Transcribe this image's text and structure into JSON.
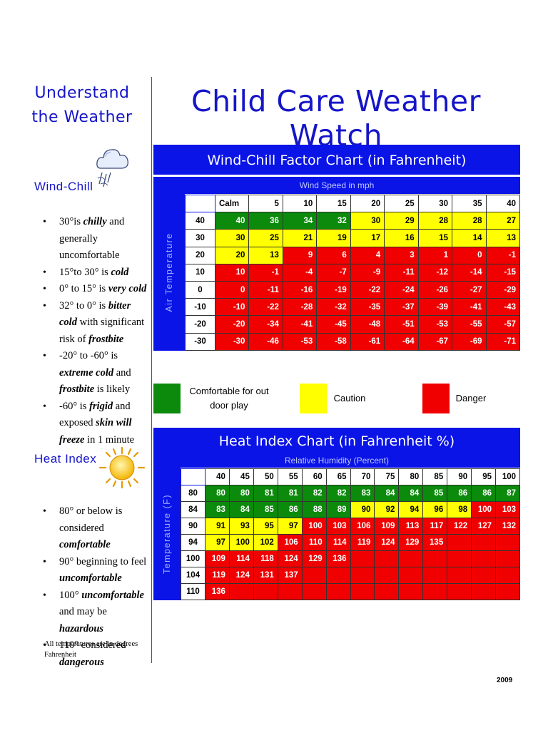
{
  "sidebar": {
    "heading": "Understand the Weather",
    "wind_chill": {
      "heading": "Wind-Chill",
      "icon": "cloud-wind-icon",
      "bullets": [
        {
          "parts": [
            [
              "30°is ",
              false
            ],
            [
              "chilly",
              true
            ],
            [
              " and generally uncomfortable",
              false
            ]
          ]
        },
        {
          "parts": [
            [
              "15°to 30° is ",
              false
            ],
            [
              "cold",
              true
            ]
          ]
        },
        {
          "parts": [
            [
              "0° to 15° is ",
              false
            ],
            [
              "very cold",
              true
            ]
          ]
        },
        {
          "parts": [
            [
              "32° to 0° is ",
              false
            ],
            [
              "bitter cold",
              true
            ],
            [
              " with significant risk of ",
              false
            ],
            [
              "frostbite",
              true
            ]
          ]
        },
        {
          "parts": [
            [
              "-20° to -60° is ",
              false
            ],
            [
              "extreme cold",
              true
            ],
            [
              " and ",
              false
            ],
            [
              "frostbite",
              true
            ],
            [
              " is likely",
              false
            ]
          ]
        },
        {
          "parts": [
            [
              "-60° is ",
              false
            ],
            [
              "frigid",
              true
            ],
            [
              " and exposed ",
              false
            ],
            [
              "skin will freeze",
              true
            ],
            [
              " in 1 minute",
              false
            ]
          ]
        }
      ]
    },
    "heat_index": {
      "heading": "Heat Index",
      "icon": "sun-icon",
      "bullets": [
        {
          "parts": [
            [
              "80° or below is considered ",
              false
            ],
            [
              "comfortable",
              true
            ]
          ]
        },
        {
          "parts": [
            [
              "90° beginning to feel ",
              false
            ],
            [
              "uncomfortable",
              true
            ]
          ]
        },
        {
          "parts": [
            [
              "100° ",
              false
            ],
            [
              "uncomfortable",
              true
            ],
            [
              " and may be ",
              false
            ],
            [
              "hazardous",
              true
            ]
          ]
        },
        {
          "parts": [
            [
              "110° considered ",
              false
            ],
            [
              "dangerous",
              true
            ]
          ]
        }
      ]
    },
    "note": "All temperatures are in degrees Fahrenheit"
  },
  "title": "Child Care Weather Watch",
  "colors": {
    "green": "#0b8a0b",
    "yellow": "#ffff00",
    "red": "#f00000",
    "blue": "#0a14e6",
    "title": "#1515c8"
  },
  "wind_chill_chart": {
    "title": "Wind-Chill Factor Chart (in Fahrenheit)",
    "subtitle": "Wind Speed in mph",
    "row_axis_label": "Air Temperature",
    "columns": [
      "Calm",
      "5",
      "10",
      "15",
      "20",
      "25",
      "30",
      "35",
      "40"
    ],
    "rows": [
      {
        "temp": "40",
        "cells": [
          [
            "40",
            "g"
          ],
          [
            "36",
            "g"
          ],
          [
            "34",
            "g"
          ],
          [
            "32",
            "g"
          ],
          [
            "30",
            "y"
          ],
          [
            "29",
            "y"
          ],
          [
            "28",
            "y"
          ],
          [
            "28",
            "y"
          ],
          [
            "27",
            "y"
          ]
        ]
      },
      {
        "temp": "30",
        "cells": [
          [
            "30",
            "y"
          ],
          [
            "25",
            "y"
          ],
          [
            "21",
            "y"
          ],
          [
            "19",
            "y"
          ],
          [
            "17",
            "y"
          ],
          [
            "16",
            "y"
          ],
          [
            "15",
            "y"
          ],
          [
            "14",
            "y"
          ],
          [
            "13",
            "y"
          ]
        ]
      },
      {
        "temp": "20",
        "cells": [
          [
            "20",
            "y"
          ],
          [
            "13",
            "y"
          ],
          [
            "9",
            "r"
          ],
          [
            "6",
            "r"
          ],
          [
            "4",
            "r"
          ],
          [
            "3",
            "r"
          ],
          [
            "1",
            "r"
          ],
          [
            "0",
            "r"
          ],
          [
            "-1",
            "r"
          ]
        ]
      },
      {
        "temp": "10",
        "cells": [
          [
            "10",
            "r"
          ],
          [
            "-1",
            "r"
          ],
          [
            "-4",
            "r"
          ],
          [
            "-7",
            "r"
          ],
          [
            "-9",
            "r"
          ],
          [
            "-11",
            "r"
          ],
          [
            "-12",
            "r"
          ],
          [
            "-14",
            "r"
          ],
          [
            "-15",
            "r"
          ]
        ]
      },
      {
        "temp": "0",
        "cells": [
          [
            "0",
            "r"
          ],
          [
            "-11",
            "r"
          ],
          [
            "-16",
            "r"
          ],
          [
            "-19",
            "r"
          ],
          [
            "-22",
            "r"
          ],
          [
            "-24",
            "r"
          ],
          [
            "-26",
            "r"
          ],
          [
            "-27",
            "r"
          ],
          [
            "-29",
            "r"
          ]
        ]
      },
      {
        "temp": "-10",
        "cells": [
          [
            "-10",
            "r"
          ],
          [
            "-22",
            "r"
          ],
          [
            "-28",
            "r"
          ],
          [
            "-32",
            "r"
          ],
          [
            "-35",
            "r"
          ],
          [
            "-37",
            "r"
          ],
          [
            "-39",
            "r"
          ],
          [
            "-41",
            "r"
          ],
          [
            "-43",
            "r"
          ]
        ]
      },
      {
        "temp": "-20",
        "cells": [
          [
            "-20",
            "r"
          ],
          [
            "-34",
            "r"
          ],
          [
            "-41",
            "r"
          ],
          [
            "-45",
            "r"
          ],
          [
            "-48",
            "r"
          ],
          [
            "-51",
            "r"
          ],
          [
            "-53",
            "r"
          ],
          [
            "-55",
            "r"
          ],
          [
            "-57",
            "r"
          ]
        ]
      },
      {
        "temp": "-30",
        "cells": [
          [
            "-30",
            "r"
          ],
          [
            "-46",
            "r"
          ],
          [
            "-53",
            "r"
          ],
          [
            "-58",
            "r"
          ],
          [
            "-61",
            "r"
          ],
          [
            "-64",
            "r"
          ],
          [
            "-67",
            "r"
          ],
          [
            "-69",
            "r"
          ],
          [
            "-71",
            "r"
          ]
        ]
      }
    ]
  },
  "legend": {
    "comfortable": "Comfortable for out door play",
    "caution": "Caution",
    "danger": "Danger"
  },
  "heat_index_chart": {
    "title": "Heat Index Chart (in Fahrenheit %)",
    "subtitle": "Relative Humidity (Percent)",
    "row_axis_label": "Temperature (F)",
    "columns": [
      "40",
      "45",
      "50",
      "55",
      "60",
      "65",
      "70",
      "75",
      "80",
      "85",
      "90",
      "95",
      "100"
    ],
    "rows": [
      {
        "temp": "80",
        "cells": [
          [
            "80",
            "g"
          ],
          [
            "80",
            "g"
          ],
          [
            "81",
            "g"
          ],
          [
            "81",
            "g"
          ],
          [
            "82",
            "g"
          ],
          [
            "82",
            "g"
          ],
          [
            "83",
            "g"
          ],
          [
            "84",
            "g"
          ],
          [
            "84",
            "g"
          ],
          [
            "85",
            "g"
          ],
          [
            "86",
            "g"
          ],
          [
            "86",
            "g"
          ],
          [
            "87",
            "g"
          ]
        ]
      },
      {
        "temp": "84",
        "cells": [
          [
            "83",
            "g"
          ],
          [
            "84",
            "g"
          ],
          [
            "85",
            "g"
          ],
          [
            "86",
            "g"
          ],
          [
            "88",
            "g"
          ],
          [
            "89",
            "g"
          ],
          [
            "90",
            "y"
          ],
          [
            "92",
            "y"
          ],
          [
            "94",
            "y"
          ],
          [
            "96",
            "y"
          ],
          [
            "98",
            "y"
          ],
          [
            "100",
            "r"
          ],
          [
            "103",
            "r"
          ]
        ]
      },
      {
        "temp": "90",
        "cells": [
          [
            "91",
            "y"
          ],
          [
            "93",
            "y"
          ],
          [
            "95",
            "y"
          ],
          [
            "97",
            "y"
          ],
          [
            "100",
            "r"
          ],
          [
            "103",
            "r"
          ],
          [
            "106",
            "r"
          ],
          [
            "109",
            "r"
          ],
          [
            "113",
            "r"
          ],
          [
            "117",
            "r"
          ],
          [
            "122",
            "r"
          ],
          [
            "127",
            "r"
          ],
          [
            "132",
            "r"
          ]
        ]
      },
      {
        "temp": "94",
        "cells": [
          [
            "97",
            "y"
          ],
          [
            "100",
            "y"
          ],
          [
            "102",
            "y"
          ],
          [
            "106",
            "r"
          ],
          [
            "110",
            "r"
          ],
          [
            "114",
            "r"
          ],
          [
            "119",
            "r"
          ],
          [
            "124",
            "r"
          ],
          [
            "129",
            "r"
          ],
          [
            "135",
            "r"
          ],
          [
            "",
            "r"
          ],
          [
            "",
            "r"
          ],
          [
            "",
            "r"
          ]
        ]
      },
      {
        "temp": "100",
        "cells": [
          [
            "109",
            "r"
          ],
          [
            "114",
            "r"
          ],
          [
            "118",
            "r"
          ],
          [
            "124",
            "r"
          ],
          [
            "129",
            "r"
          ],
          [
            "136",
            "r"
          ],
          [
            "",
            "r"
          ],
          [
            "",
            "r"
          ],
          [
            "",
            "r"
          ],
          [
            "",
            "r"
          ],
          [
            "",
            "r"
          ],
          [
            "",
            "r"
          ],
          [
            "",
            "r"
          ]
        ]
      },
      {
        "temp": "104",
        "cells": [
          [
            "119",
            "r"
          ],
          [
            "124",
            "r"
          ],
          [
            "131",
            "r"
          ],
          [
            "137",
            "r"
          ],
          [
            "",
            "r"
          ],
          [
            "",
            "r"
          ],
          [
            "",
            "r"
          ],
          [
            "",
            "r"
          ],
          [
            "",
            "r"
          ],
          [
            "",
            "r"
          ],
          [
            "",
            "r"
          ],
          [
            "",
            "r"
          ],
          [
            "",
            "r"
          ]
        ]
      },
      {
        "temp": "110",
        "cells": [
          [
            "136",
            "r"
          ],
          [
            "",
            "r"
          ],
          [
            "",
            "r"
          ],
          [
            "",
            "r"
          ],
          [
            "",
            "r"
          ],
          [
            "",
            "r"
          ],
          [
            "",
            "r"
          ],
          [
            "",
            "r"
          ],
          [
            "",
            "r"
          ],
          [
            "",
            "r"
          ],
          [
            "",
            "r"
          ],
          [
            "",
            "r"
          ],
          [
            "",
            "r"
          ]
        ]
      }
    ]
  },
  "footer": {
    "year": "2009"
  }
}
